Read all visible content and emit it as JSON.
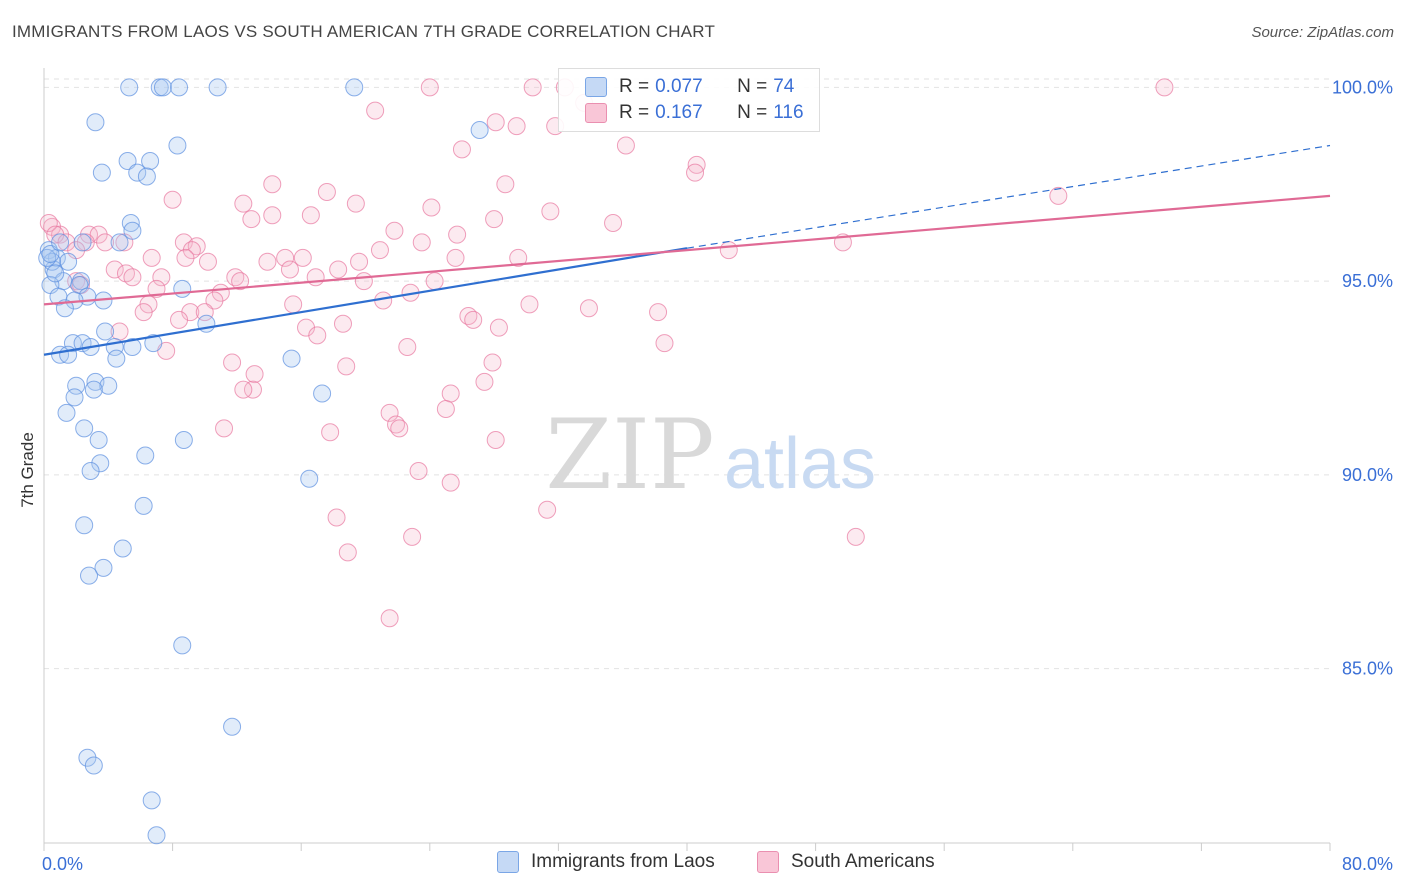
{
  "header": {
    "title": "IMMIGRANTS FROM LAOS VS SOUTH AMERICAN 7TH GRADE CORRELATION CHART",
    "source": "Source: ZipAtlas.com"
  },
  "watermark": {
    "zip": "ZIP",
    "atlas": "atlas"
  },
  "legend": {
    "rows": [
      {
        "r_label": "R =",
        "r_value": "0.077",
        "n_label": "N =",
        "n_value": "74",
        "color": "#7aa6e6",
        "fill": "#c5d9f5"
      },
      {
        "r_label": "R =",
        "r_value": "0.167",
        "n_label": "N =",
        "n_value": "116",
        "color": "#ea8fb0",
        "fill": "#f9c6d7"
      }
    ]
  },
  "bottom_legend": {
    "items": [
      {
        "label": "Immigrants from Laos",
        "color": "#7aa6e6",
        "fill": "#c5d9f5"
      },
      {
        "label": "South Americans",
        "color": "#ea8fb0",
        "fill": "#f9c6d7"
      }
    ]
  },
  "chart_data": {
    "type": "scatter",
    "title": "IMMIGRANTS FROM LAOS VS SOUTH AMERICAN 7TH GRADE CORRELATION CHART",
    "xlabel": "",
    "ylabel": "7th Grade",
    "xlim": [
      0,
      80
    ],
    "ylim": [
      80.5,
      100.5
    ],
    "x_tick_labels": [
      "0.0%",
      "80.0%"
    ],
    "y_ticks": [
      85,
      90,
      95,
      100
    ],
    "y_tick_labels": [
      "85.0%",
      "90.0%",
      "95.0%",
      "100.0%"
    ],
    "grid": true,
    "series": [
      {
        "name": "Immigrants from Laos",
        "color": "#5b8fe0",
        "fill": "rgba(170,200,240,0.35)",
        "trend": {
          "x": [
            0,
            40
          ],
          "y": [
            93.1,
            95.85
          ],
          "dashed_to": [
            80,
            98.5
          ],
          "color": "#2f6fd0"
        },
        "points": [
          [
            5.3,
            100.0
          ],
          [
            7.2,
            100.0
          ],
          [
            7.4,
            100.0
          ],
          [
            8.4,
            100.0
          ],
          [
            10.8,
            100.0
          ],
          [
            19.3,
            100.0
          ],
          [
            3.2,
            99.1
          ],
          [
            8.3,
            98.5
          ],
          [
            5.2,
            98.1
          ],
          [
            6.6,
            98.1
          ],
          [
            3.6,
            97.8
          ],
          [
            5.8,
            97.8
          ],
          [
            6.4,
            97.7
          ],
          [
            27.1,
            98.9
          ],
          [
            5.4,
            96.5
          ],
          [
            5.5,
            96.3
          ],
          [
            0.3,
            95.8
          ],
          [
            0.8,
            95.6
          ],
          [
            1.5,
            95.5
          ],
          [
            0.6,
            95.3
          ],
          [
            1.2,
            95.0
          ],
          [
            2.3,
            95.0
          ],
          [
            2.2,
            94.9
          ],
          [
            0.4,
            94.9
          ],
          [
            0.9,
            94.6
          ],
          [
            2.7,
            94.6
          ],
          [
            1.9,
            94.5
          ],
          [
            3.7,
            94.5
          ],
          [
            8.6,
            94.8
          ],
          [
            1.3,
            94.3
          ],
          [
            10.1,
            93.9
          ],
          [
            3.8,
            93.7
          ],
          [
            1.8,
            93.4
          ],
          [
            6.8,
            93.4
          ],
          [
            2.4,
            93.4
          ],
          [
            2.9,
            93.3
          ],
          [
            4.4,
            93.3
          ],
          [
            5.5,
            93.3
          ],
          [
            1.0,
            93.1
          ],
          [
            1.5,
            93.1
          ],
          [
            4.5,
            93.0
          ],
          [
            15.4,
            93.0
          ],
          [
            3.2,
            92.4
          ],
          [
            2.0,
            92.3
          ],
          [
            4.0,
            92.3
          ],
          [
            3.1,
            92.2
          ],
          [
            17.3,
            92.1
          ],
          [
            1.9,
            92.0
          ],
          [
            1.4,
            91.6
          ],
          [
            2.5,
            91.2
          ],
          [
            3.4,
            90.9
          ],
          [
            8.7,
            90.9
          ],
          [
            6.3,
            90.5
          ],
          [
            3.5,
            90.3
          ],
          [
            2.9,
            90.1
          ],
          [
            16.5,
            89.9
          ],
          [
            6.2,
            89.2
          ],
          [
            2.5,
            88.7
          ],
          [
            4.9,
            88.1
          ],
          [
            3.7,
            87.6
          ],
          [
            2.8,
            87.4
          ],
          [
            0.5,
            95.5
          ],
          [
            0.7,
            95.2
          ],
          [
            0.2,
            95.6
          ],
          [
            0.4,
            95.7
          ],
          [
            8.6,
            85.6
          ],
          [
            11.7,
            83.5
          ],
          [
            2.7,
            82.7
          ],
          [
            3.1,
            82.5
          ],
          [
            6.7,
            81.6
          ],
          [
            7.0,
            80.7
          ],
          [
            2.4,
            96.0
          ],
          [
            4.7,
            96.0
          ],
          [
            1.0,
            96.0
          ]
        ]
      },
      {
        "name": "South Americans",
        "color": "#e8779f",
        "fill": "rgba(245,185,205,0.3)",
        "trend": {
          "x": [
            0,
            80
          ],
          "y": [
            94.4,
            97.2
          ],
          "color": "#e06a95"
        },
        "points": [
          [
            24.0,
            100.0
          ],
          [
            30.4,
            100.0
          ],
          [
            32.4,
            100.0
          ],
          [
            69.7,
            100.0
          ],
          [
            33.6,
            99.6
          ],
          [
            20.6,
            99.4
          ],
          [
            28.1,
            99.1
          ],
          [
            29.4,
            99.0
          ],
          [
            31.8,
            99.0
          ],
          [
            26.0,
            98.4
          ],
          [
            36.2,
            98.5
          ],
          [
            40.6,
            98.0
          ],
          [
            40.5,
            97.8
          ],
          [
            28.7,
            97.5
          ],
          [
            14.2,
            97.5
          ],
          [
            17.6,
            97.3
          ],
          [
            63.1,
            97.2
          ],
          [
            8.0,
            97.1
          ],
          [
            12.4,
            97.0
          ],
          [
            19.4,
            97.0
          ],
          [
            24.1,
            96.9
          ],
          [
            14.2,
            96.7
          ],
          [
            16.6,
            96.7
          ],
          [
            28.0,
            96.6
          ],
          [
            0.5,
            96.4
          ],
          [
            1.0,
            96.2
          ],
          [
            2.8,
            96.2
          ],
          [
            3.4,
            96.2
          ],
          [
            5.0,
            96.0
          ],
          [
            23.5,
            96.0
          ],
          [
            25.7,
            96.2
          ],
          [
            8.7,
            96.0
          ],
          [
            9.5,
            95.9
          ],
          [
            2.6,
            96.0
          ],
          [
            49.7,
            96.0
          ],
          [
            42.6,
            95.8
          ],
          [
            20.9,
            95.8
          ],
          [
            16.1,
            95.6
          ],
          [
            15.0,
            95.6
          ],
          [
            25.6,
            95.6
          ],
          [
            29.5,
            95.6
          ],
          [
            6.7,
            95.6
          ],
          [
            13.9,
            95.5
          ],
          [
            10.2,
            95.5
          ],
          [
            15.3,
            95.3
          ],
          [
            4.4,
            95.3
          ],
          [
            5.1,
            95.2
          ],
          [
            7.3,
            95.1
          ],
          [
            5.5,
            95.1
          ],
          [
            11.9,
            95.1
          ],
          [
            16.9,
            95.1
          ],
          [
            12.2,
            95.0
          ],
          [
            19.9,
            95.0
          ],
          [
            2.0,
            95.0
          ],
          [
            2.3,
            94.9
          ],
          [
            11.0,
            94.7
          ],
          [
            22.8,
            94.7
          ],
          [
            10.6,
            94.5
          ],
          [
            21.1,
            94.5
          ],
          [
            15.5,
            94.4
          ],
          [
            6.5,
            94.4
          ],
          [
            6.2,
            94.2
          ],
          [
            9.1,
            94.2
          ],
          [
            10.0,
            94.2
          ],
          [
            38.2,
            94.2
          ],
          [
            26.4,
            94.1
          ],
          [
            8.4,
            94.0
          ],
          [
            26.7,
            94.0
          ],
          [
            18.6,
            93.9
          ],
          [
            28.3,
            93.8
          ],
          [
            16.3,
            93.8
          ],
          [
            17.0,
            93.6
          ],
          [
            4.7,
            93.7
          ],
          [
            38.6,
            93.4
          ],
          [
            22.6,
            93.3
          ],
          [
            7.6,
            93.2
          ],
          [
            11.7,
            92.9
          ],
          [
            27.9,
            92.9
          ],
          [
            18.8,
            92.8
          ],
          [
            13.1,
            92.6
          ],
          [
            13.0,
            92.2
          ],
          [
            12.4,
            92.2
          ],
          [
            27.4,
            92.4
          ],
          [
            25.3,
            92.1
          ],
          [
            21.5,
            91.6
          ],
          [
            25.0,
            91.7
          ],
          [
            21.9,
            91.3
          ],
          [
            22.1,
            91.2
          ],
          [
            11.2,
            91.2
          ],
          [
            17.8,
            91.1
          ],
          [
            28.1,
            90.9
          ],
          [
            23.3,
            90.1
          ],
          [
            25.3,
            89.8
          ],
          [
            31.3,
            89.1
          ],
          [
            18.2,
            88.9
          ],
          [
            22.9,
            88.4
          ],
          [
            50.5,
            88.4
          ],
          [
            18.9,
            88.0
          ],
          [
            21.5,
            86.3
          ],
          [
            0.3,
            96.5
          ],
          [
            0.7,
            96.2
          ],
          [
            1.4,
            96.0
          ],
          [
            2.0,
            95.8
          ],
          [
            3.8,
            96.0
          ],
          [
            9.2,
            95.8
          ],
          [
            12.9,
            96.6
          ],
          [
            21.8,
            96.3
          ],
          [
            31.5,
            96.8
          ],
          [
            35.4,
            96.5
          ],
          [
            19.6,
            95.5
          ],
          [
            8.8,
            95.6
          ],
          [
            18.3,
            95.3
          ],
          [
            24.3,
            95.0
          ],
          [
            7.0,
            94.8
          ],
          [
            30.2,
            94.4
          ],
          [
            33.9,
            94.3
          ]
        ]
      }
    ]
  }
}
